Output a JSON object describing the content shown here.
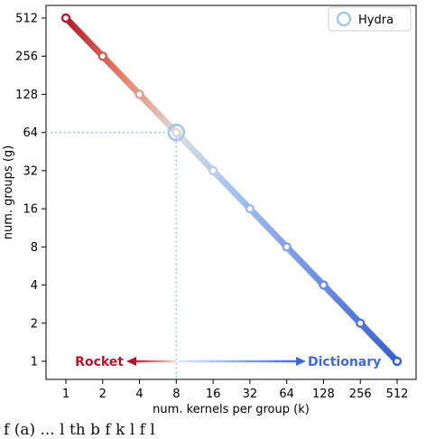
{
  "chart_data": {
    "type": "line",
    "xlabel": "num. kernels per group (k)",
    "ylabel": "num. groups (g)",
    "x_ticks": [
      "1",
      "2",
      "4",
      "8",
      "16",
      "32",
      "64",
      "128",
      "256",
      "512"
    ],
    "y_ticks": [
      "1",
      "2",
      "4",
      "8",
      "16",
      "32",
      "64",
      "128",
      "256",
      "512"
    ],
    "x_scale": "log2",
    "y_scale": "log2",
    "grid": false,
    "legend_position": "top-right",
    "series": [
      {
        "points": [
          {
            "x": 1,
            "y": 512
          },
          {
            "x": 2,
            "y": 256
          },
          {
            "x": 4,
            "y": 128
          },
          {
            "x": 8,
            "y": 64
          },
          {
            "x": 16,
            "y": 32
          },
          {
            "x": 32,
            "y": 16
          },
          {
            "x": 64,
            "y": 8
          },
          {
            "x": 128,
            "y": 4
          },
          {
            "x": 256,
            "y": 2
          },
          {
            "x": 512,
            "y": 1
          }
        ],
        "color_start": "#b2182b",
        "color_mid": "#dddddd",
        "color_end": "#3a5fcd"
      }
    ],
    "highlight": {
      "name": "Hydra",
      "x": 8,
      "y": 64,
      "color": "#a9c4ee"
    },
    "legend": [
      {
        "label": "Hydra"
      }
    ],
    "annotations": {
      "left_label": "Rocket",
      "left_color": "#b2182b",
      "right_label": "Dictionary",
      "right_color": "#4169d8"
    }
  },
  "caption": "f            (a)           ...  l     th      b    f  k     l    f  l"
}
